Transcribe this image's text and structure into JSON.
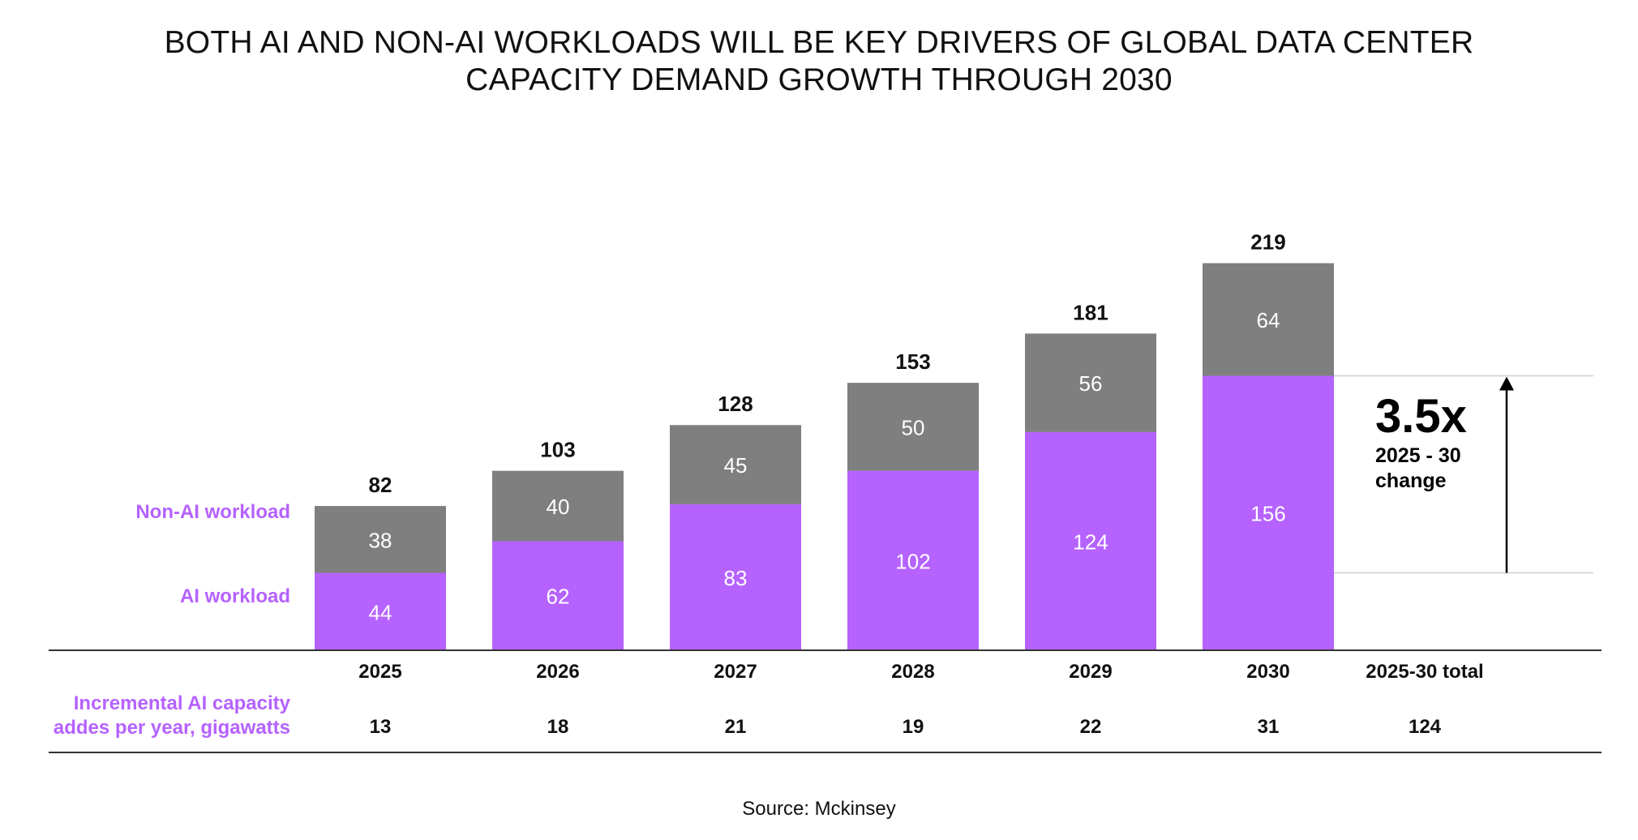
{
  "title_line1": "BOTH AI AND NON-AI WORKLOADS WILL BE KEY DRIVERS OF GLOBAL DATA CENTER",
  "title_line2": "CAPACITY DEMAND GROWTH THROUGH 2030",
  "source": "Source: Mckinsey",
  "colors": {
    "ai": "#b562ff",
    "non_ai": "#7f7f7f",
    "label_accent": "#b562ff",
    "text": "#111111"
  },
  "chart_data": {
    "type": "bar",
    "stacked": true,
    "categories": [
      "2025",
      "2026",
      "2027",
      "2028",
      "2029",
      "2030"
    ],
    "series": [
      {
        "name": "AI workload",
        "values": [
          44,
          62,
          83,
          102,
          124,
          156
        ]
      },
      {
        "name": "Non-AI workload",
        "values": [
          38,
          40,
          45,
          50,
          56,
          64
        ]
      }
    ],
    "totals": [
      82,
      103,
      128,
      153,
      181,
      219
    ],
    "annotation": {
      "value": "3.5x",
      "line1": "2025 - 30",
      "line2": "change",
      "from_value": 44,
      "to_value": 156
    },
    "table": {
      "label_line1": "Incremental AI capacity",
      "label_line2": "addes per year, gigawatts",
      "values": [
        "13",
        "18",
        "21",
        "19",
        "22",
        "31"
      ],
      "total_header": "2025-30 total",
      "total_value": "124"
    }
  }
}
